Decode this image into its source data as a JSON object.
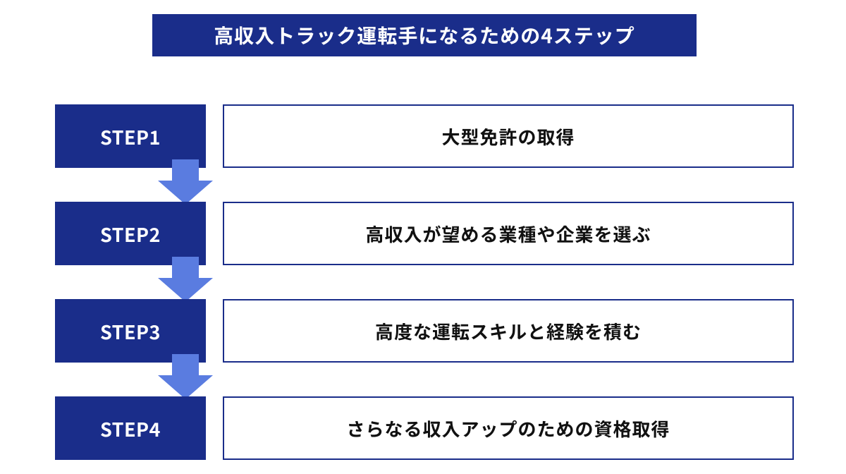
{
  "type": "flowchart",
  "title": {
    "text": "高収入トラック運転手になるための4ステップ",
    "background_color": "#1a2d8a",
    "text_color": "#ffffff",
    "fontsize": 28
  },
  "arrow": {
    "fill_color": "#5a7ce0"
  },
  "step_box": {
    "background_color": "#1a2d8a",
    "text_color": "#ffffff",
    "fontsize": 27
  },
  "desc_box": {
    "background_color": "#ffffff",
    "border_color": "#1a2d8a",
    "border_width": 2,
    "text_color": "#111111",
    "fontsize": 26
  },
  "steps": [
    {
      "label": "STEP1",
      "description": "大型免許の取得",
      "has_arrow": true
    },
    {
      "label": "STEP2",
      "description": "高収入が望める業種や企業を選ぶ",
      "has_arrow": true
    },
    {
      "label": "STEP3",
      "description": "高度な運転スキルと経験を積む",
      "has_arrow": true
    },
    {
      "label": "STEP4",
      "description": "さらなる収入アップのための資格取得",
      "has_arrow": false
    }
  ]
}
